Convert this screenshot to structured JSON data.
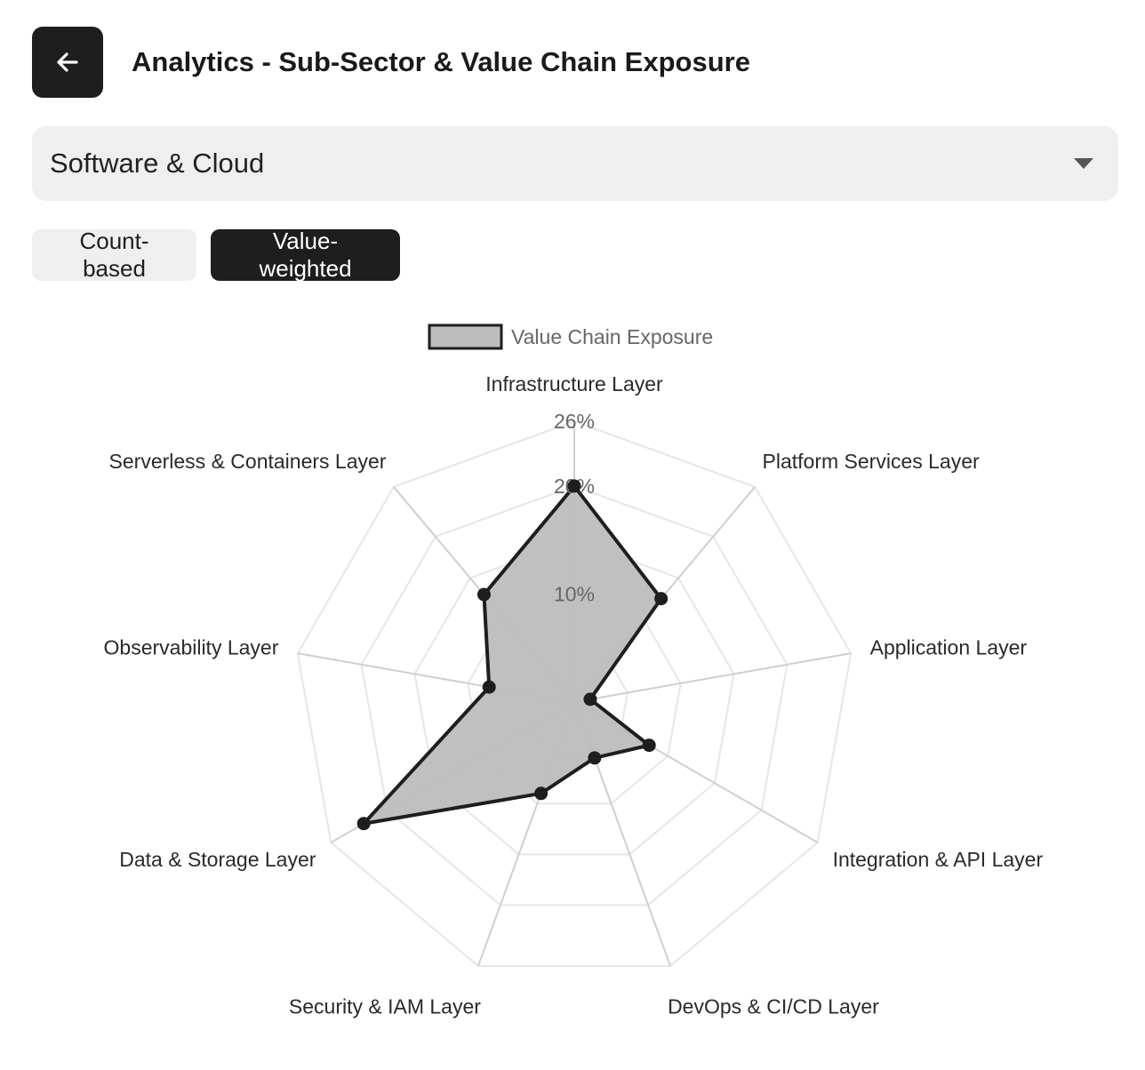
{
  "header": {
    "title": "Analytics - Sub-Sector & Value Chain Exposure",
    "back_icon": "arrow-left-icon"
  },
  "selector": {
    "value": "Software & Cloud",
    "icon": "caret-down-icon"
  },
  "toggle": {
    "options": [
      "Count-based",
      "Value-weighted"
    ],
    "selected": "Value-weighted"
  },
  "colors": {
    "primary": "#1e1e1e",
    "fill": "#bdbdbd",
    "grid": "#e6e6e6",
    "spoke": "#cfcfcf"
  },
  "chart_data": {
    "type": "radar",
    "axes": [
      "Infrastructure Layer",
      "Platform Services Layer",
      "Application Layer",
      "Integration & API Layer",
      "DevOps & CI/CD Layer",
      "Security & IAM Layer",
      "Data & Storage Layer",
      "Observability Layer",
      "Serverless & Containers Layer"
    ],
    "series": [
      {
        "name": "Value Chain Exposure",
        "values": [
          20,
          12.5,
          1.5,
          8,
          5.5,
          9,
          22.5,
          8,
          13
        ]
      }
    ],
    "r_min": 0,
    "r_max": 26,
    "ticks": [
      {
        "value": 10,
        "label": "10%"
      },
      {
        "value": 20,
        "label": "20%"
      },
      {
        "value": 26,
        "label": "26%"
      }
    ],
    "grid_rings": [
      5,
      10,
      15,
      20,
      26
    ],
    "legend_position": "top"
  }
}
